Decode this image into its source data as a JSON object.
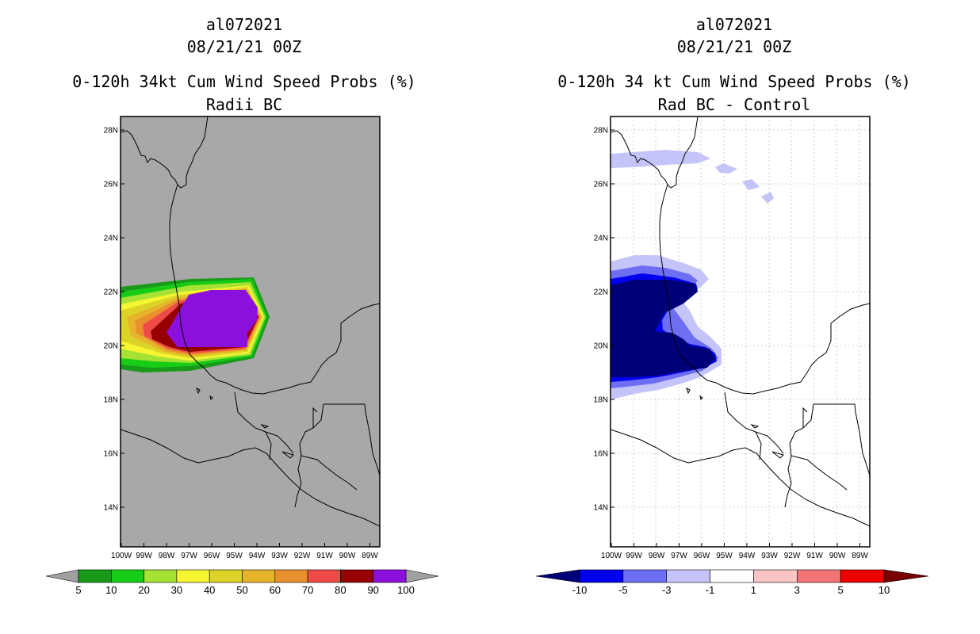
{
  "left_panel": {
    "storm_id": "al072021",
    "datetime": "08/21/21 00Z",
    "title": "0-120h 34kt Cum Wind Speed Probs (%)",
    "subtitle": "Radii BC",
    "colorbar": {
      "labels": [
        "5",
        "10",
        "20",
        "30",
        "40",
        "50",
        "60",
        "70",
        "80",
        "90",
        "100"
      ],
      "colors": [
        "#1a9a1a",
        "#16cc16",
        "#a5e234",
        "#f5f532",
        "#dcd228",
        "#e6b42a",
        "#ea8f2e",
        "#ee4b48",
        "#960000",
        "#8c10dc"
      ],
      "under_color": "#a0a0a0",
      "over_color": "#a0a0a0"
    }
  },
  "right_panel": {
    "storm_id": "al072021",
    "datetime": "08/21/21 00Z",
    "title": "0-120h 34 kt Cum Wind Speed Probs (%)",
    "subtitle": "Rad BC - Control",
    "colorbar": {
      "labels": [
        "-10",
        "-5",
        "-3",
        "-1",
        "1",
        "3",
        "5",
        "10"
      ],
      "colors": [
        "#0000ee",
        "#6e6ef2",
        "#c4c4f8",
        "#ffffff",
        "#f8c4c4",
        "#f27474",
        "#ee0000"
      ],
      "under_color": "#000078",
      "over_color": "#780000"
    }
  },
  "axes": {
    "lat_labels": [
      "28N",
      "26N",
      "24N",
      "22N",
      "20N",
      "18N",
      "16N",
      "14N"
    ],
    "lon_labels": [
      "100W",
      "99W",
      "98W",
      "97W",
      "96W",
      "95W",
      "94W",
      "93W",
      "92W",
      "91W",
      "90W",
      "89W"
    ]
  },
  "colors": {
    "land_bg_left": "#a8a8a8",
    "grid": "#b4b4b4",
    "coast": "#000000"
  }
}
